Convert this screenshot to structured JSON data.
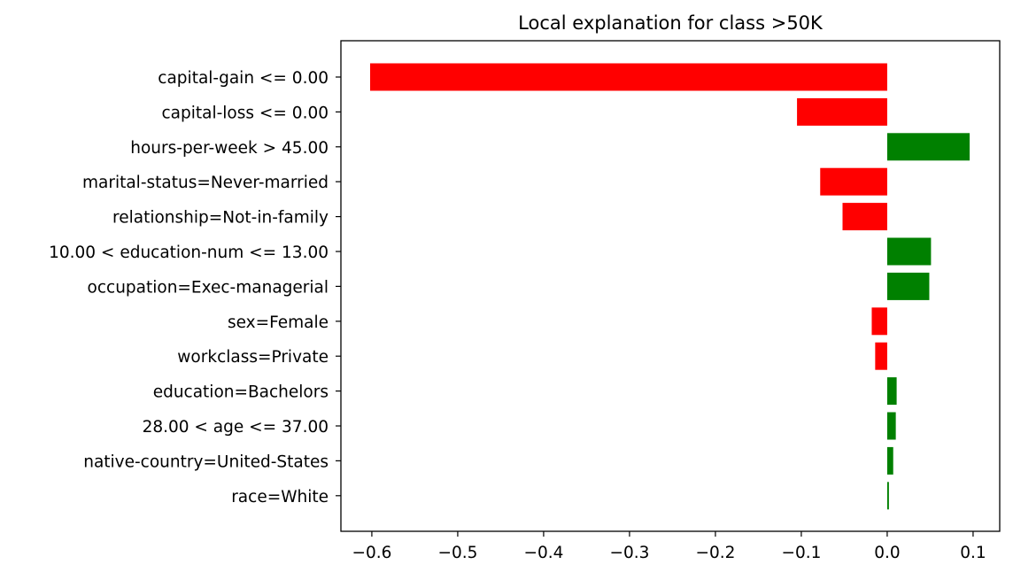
{
  "chart_data": {
    "type": "bar",
    "orientation": "horizontal",
    "title": "Local explanation for class >50K",
    "xlabel": "",
    "ylabel": "",
    "xlim": [
      -0.636,
      0.131
    ],
    "xticks": [
      -0.6,
      -0.5,
      -0.4,
      -0.3,
      -0.2,
      -0.1,
      0.0,
      0.1
    ],
    "xtick_labels": [
      "−0.6",
      "−0.5",
      "−0.4",
      "−0.3",
      "−0.2",
      "−0.1",
      "0.0",
      "0.1"
    ],
    "grid": false,
    "colors": {
      "positive": "#008000",
      "negative": "#ff0000"
    },
    "categories": [
      "capital-gain <= 0.00",
      "capital-loss <= 0.00",
      "hours-per-week > 45.00",
      "marital-status=Never-married",
      "relationship=Not-in-family",
      "10.00 < education-num <= 13.00",
      "occupation=Exec-managerial",
      "sex=Female",
      "workclass=Private",
      "education=Bachelors",
      "28.00 < age <= 37.00",
      "native-country=United-States",
      "race=White"
    ],
    "values": [
      -0.602,
      -0.105,
      0.096,
      -0.078,
      -0.052,
      0.051,
      0.049,
      -0.018,
      -0.014,
      0.011,
      0.01,
      0.007,
      0.002
    ]
  }
}
